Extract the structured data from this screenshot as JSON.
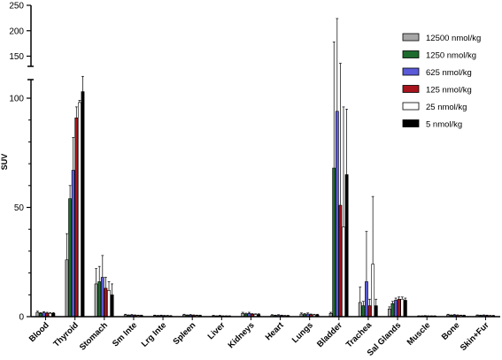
{
  "chart_data": {
    "type": "bar",
    "ylabel": "SUV",
    "xlabel": "",
    "title": "",
    "ylim_lower": [
      0,
      110
    ],
    "ylim_upper": [
      130,
      250
    ],
    "yticks_lower": [
      "0",
      "50",
      "100"
    ],
    "yticks_upper": [
      "150",
      "200",
      "250"
    ],
    "legend_position": "top-right",
    "categories": [
      "Blood",
      "Thyroid",
      "Stomach",
      "Sm Inte",
      "Lrg Inte",
      "Spleen",
      "Liver",
      "Kidneys",
      "Heart",
      "Lungs",
      "Bladder",
      "Trachea",
      "Sal Glands",
      "Muscle",
      "Bone",
      "Skin+Fur"
    ],
    "series": [
      {
        "name": "12500 nmol/kg",
        "color": "#a6a6a6",
        "values": [
          2,
          26,
          15,
          0.8,
          0.5,
          0.8,
          0.4,
          1.5,
          0.6,
          1.2,
          1.5,
          6.5,
          3.5,
          0.3,
          0.8,
          0.6
        ],
        "errors": [
          0.5,
          12,
          7,
          0.3,
          0.2,
          0.3,
          0.2,
          0.5,
          0.3,
          0.5,
          0.5,
          7,
          1,
          0.1,
          0.3,
          0.2
        ]
      },
      {
        "name": "1250 nmol/kg",
        "color": "#1e6b2e",
        "values": [
          1.5,
          54,
          16,
          0.6,
          0.4,
          0.6,
          0.3,
          1.2,
          0.5,
          1,
          68,
          5,
          6,
          0.3,
          0.6,
          0.5
        ],
        "errors": [
          0.4,
          6,
          7,
          0.2,
          0.2,
          0.2,
          0.1,
          0.4,
          0.2,
          0.4,
          110,
          2,
          1,
          0.1,
          0.2,
          0.2
        ]
      },
      {
        "name": "625 nmol/kg",
        "color": "#5a5ad8",
        "values": [
          1.8,
          67,
          18,
          0.7,
          0.5,
          0.7,
          0.4,
          1.5,
          0.6,
          1.2,
          94,
          16,
          7.5,
          0.4,
          0.7,
          0.6
        ],
        "errors": [
          0.5,
          15,
          10,
          0.3,
          0.2,
          0.3,
          0.2,
          0.5,
          0.3,
          0.5,
          130,
          23,
          1,
          0.1,
          0.3,
          0.2
        ]
      },
      {
        "name": "125 nmol/kg",
        "color": "#a8141c",
        "values": [
          1.6,
          91,
          13,
          0.6,
          0.4,
          0.6,
          0.3,
          1.1,
          0.5,
          0.9,
          51,
          5,
          8,
          0.3,
          0.6,
          0.5
        ],
        "errors": [
          0.4,
          5,
          5,
          0.2,
          0.2,
          0.2,
          0.1,
          0.3,
          0.2,
          0.3,
          85,
          3,
          1,
          0.1,
          0.2,
          0.2
        ]
      },
      {
        "name": "25 nmol/kg",
        "color": "#ffffff",
        "values": [
          1.5,
          98,
          12,
          0.5,
          0.4,
          0.5,
          0.3,
          1,
          0.4,
          0.8,
          41,
          24,
          8,
          0.3,
          0.5,
          0.4
        ],
        "errors": [
          0.4,
          1,
          4,
          0.2,
          0.2,
          0.2,
          0.1,
          0.3,
          0.2,
          0.3,
          55,
          31,
          1,
          0.1,
          0.2,
          0.2
        ]
      },
      {
        "name": "5 nmol/kg",
        "color": "#000000",
        "values": [
          1.5,
          103,
          10,
          0.5,
          0.3,
          0.5,
          0.3,
          1,
          0.4,
          0.8,
          65,
          5,
          7.5,
          0.3,
          0.5,
          0.4
        ],
        "errors": [
          0.4,
          7,
          5,
          0.2,
          0.2,
          0.2,
          0.1,
          0.3,
          0.2,
          0.3,
          30,
          3,
          1,
          0.1,
          0.2,
          0.2
        ]
      }
    ]
  }
}
